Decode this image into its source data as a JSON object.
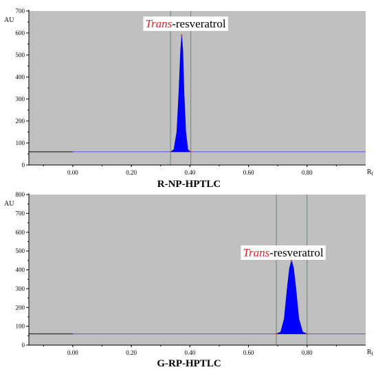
{
  "chart_data": [
    {
      "type": "line",
      "title": "R-NP-HPTLC",
      "ylabel": "AU",
      "xlabel": "Rf",
      "xlim": [
        -0.15,
        1.0
      ],
      "ylim": [
        0,
        700
      ],
      "yticks": [
        0,
        100,
        200,
        300,
        400,
        500,
        600,
        700
      ],
      "xticks": [
        0.0,
        0.2,
        0.4,
        0.6,
        0.8
      ],
      "xtick_labels": [
        "0.00",
        "0.20",
        "0.40",
        "0.60",
        "0.80"
      ],
      "ytick_labels": [
        "0",
        "100",
        "200",
        "300",
        "400",
        "500",
        "600",
        "700"
      ],
      "baseline": 60,
      "marker_lines": [
        0.334,
        0.403
      ],
      "series": [
        {
          "x": [
            0.334,
            0.345,
            0.355,
            0.362,
            0.368,
            0.372,
            0.376,
            0.38,
            0.386,
            0.393,
            0.403
          ],
          "y": [
            60,
            70,
            150,
            330,
            520,
            590,
            520,
            330,
            150,
            70,
            60
          ]
        }
      ],
      "annotation": {
        "italic": "Trans",
        "rest": "-resveratrol"
      },
      "colors": {
        "plot_bg": "#c0c0c0",
        "fill": "#0000ff",
        "baseline": "#5555ee"
      }
    },
    {
      "type": "line",
      "title": "G-RP-HPTLC",
      "ylabel": "AU",
      "xlabel": "Rf",
      "xlim": [
        -0.15,
        1.0
      ],
      "ylim": [
        0,
        800
      ],
      "yticks": [
        0,
        100,
        200,
        300,
        400,
        500,
        600,
        700,
        800
      ],
      "xticks": [
        0.0,
        0.2,
        0.4,
        0.6,
        0.8
      ],
      "xtick_labels": [
        "0.00",
        "0.20",
        "0.40",
        "0.60",
        "0.80"
      ],
      "ytick_labels": [
        "0",
        "100",
        "200",
        "300",
        "400",
        "500",
        "600",
        "700",
        "800"
      ],
      "baseline": 60,
      "marker_lines": [
        0.695,
        0.8
      ],
      "series": [
        {
          "x": [
            0.695,
            0.71,
            0.722,
            0.732,
            0.74,
            0.747,
            0.754,
            0.762,
            0.772,
            0.785,
            0.8
          ],
          "y": [
            60,
            70,
            140,
            300,
            410,
            450,
            410,
            300,
            140,
            70,
            60
          ]
        }
      ],
      "annotation": {
        "italic": "Trans",
        "rest": "-resveratrol"
      },
      "colors": {
        "plot_bg": "#c0c0c0",
        "fill": "#0000ff",
        "baseline": "#5555ee"
      }
    }
  ]
}
